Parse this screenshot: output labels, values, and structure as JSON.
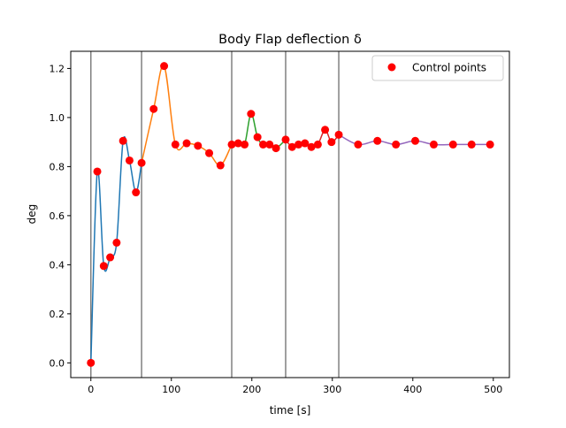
{
  "chart_data": {
    "type": "line",
    "title": "Body Flap deflection δ",
    "xlabel": "time [s]",
    "ylabel": "deg",
    "xlim": [
      -25,
      520
    ],
    "ylim": [
      -0.06,
      1.27
    ],
    "xticks": [
      0,
      100,
      200,
      300,
      400,
      500
    ],
    "yticks": [
      0.0,
      0.2,
      0.4,
      0.6,
      0.8,
      1.0,
      1.2
    ],
    "xtick_labels": [
      "0",
      "100",
      "200",
      "300",
      "400",
      "500"
    ],
    "ytick_labels": [
      "0.0",
      "0.2",
      "0.4",
      "0.6",
      "0.8",
      "1.0",
      "1.2"
    ],
    "grid": false,
    "legend": {
      "label": "Control points",
      "position": "upper-right"
    },
    "vertical_lines": [
      0,
      63,
      175,
      242,
      308
    ],
    "vline_color": "#808080",
    "series": [
      {
        "color": "#1f77b4",
        "x": [
          0,
          8,
          16,
          24,
          32,
          40,
          48,
          56,
          63
        ],
        "y": [
          0.0,
          0.78,
          0.395,
          0.43,
          0.49,
          0.905,
          0.825,
          0.695,
          0.815
        ]
      },
      {
        "color": "#ff7f0e",
        "x": [
          63,
          78,
          91,
          105,
          119,
          133,
          147,
          161,
          175
        ],
        "y": [
          0.815,
          1.035,
          1.21,
          0.89,
          0.895,
          0.885,
          0.855,
          0.805,
          0.89
        ]
      },
      {
        "color": "#2ca02c",
        "x": [
          175,
          183,
          191,
          199,
          207,
          214,
          222,
          230,
          242
        ],
        "y": [
          0.89,
          0.895,
          0.89,
          1.015,
          0.92,
          0.89,
          0.89,
          0.875,
          0.91
        ]
      },
      {
        "color": "#d62728",
        "x": [
          242,
          250,
          258,
          266,
          274,
          282,
          291,
          299,
          308
        ],
        "y": [
          0.91,
          0.88,
          0.89,
          0.895,
          0.88,
          0.89,
          0.95,
          0.9,
          0.93
        ]
      },
      {
        "color": "#9467bd",
        "x": [
          308,
          332,
          356,
          379,
          403,
          426,
          450,
          473,
          496
        ],
        "y": [
          0.93,
          0.89,
          0.905,
          0.89,
          0.905,
          0.89,
          0.89,
          0.89,
          0.89
        ]
      }
    ],
    "control_points": {
      "color": "#ff0000",
      "x": [
        0,
        8,
        16,
        24,
        32,
        40,
        48,
        56,
        63,
        78,
        91,
        105,
        119,
        133,
        147,
        161,
        175,
        183,
        191,
        199,
        207,
        214,
        222,
        230,
        242,
        250,
        258,
        266,
        274,
        282,
        291,
        299,
        308,
        332,
        356,
        379,
        403,
        426,
        450,
        473,
        496
      ],
      "y": [
        0.0,
        0.78,
        0.395,
        0.43,
        0.49,
        0.905,
        0.825,
        0.695,
        0.815,
        1.035,
        1.21,
        0.89,
        0.895,
        0.885,
        0.855,
        0.805,
        0.89,
        0.895,
        0.89,
        1.015,
        0.92,
        0.89,
        0.89,
        0.875,
        0.91,
        0.88,
        0.89,
        0.895,
        0.88,
        0.89,
        0.95,
        0.9,
        0.93,
        0.89,
        0.905,
        0.89,
        0.905,
        0.89,
        0.89,
        0.89,
        0.89
      ]
    }
  }
}
